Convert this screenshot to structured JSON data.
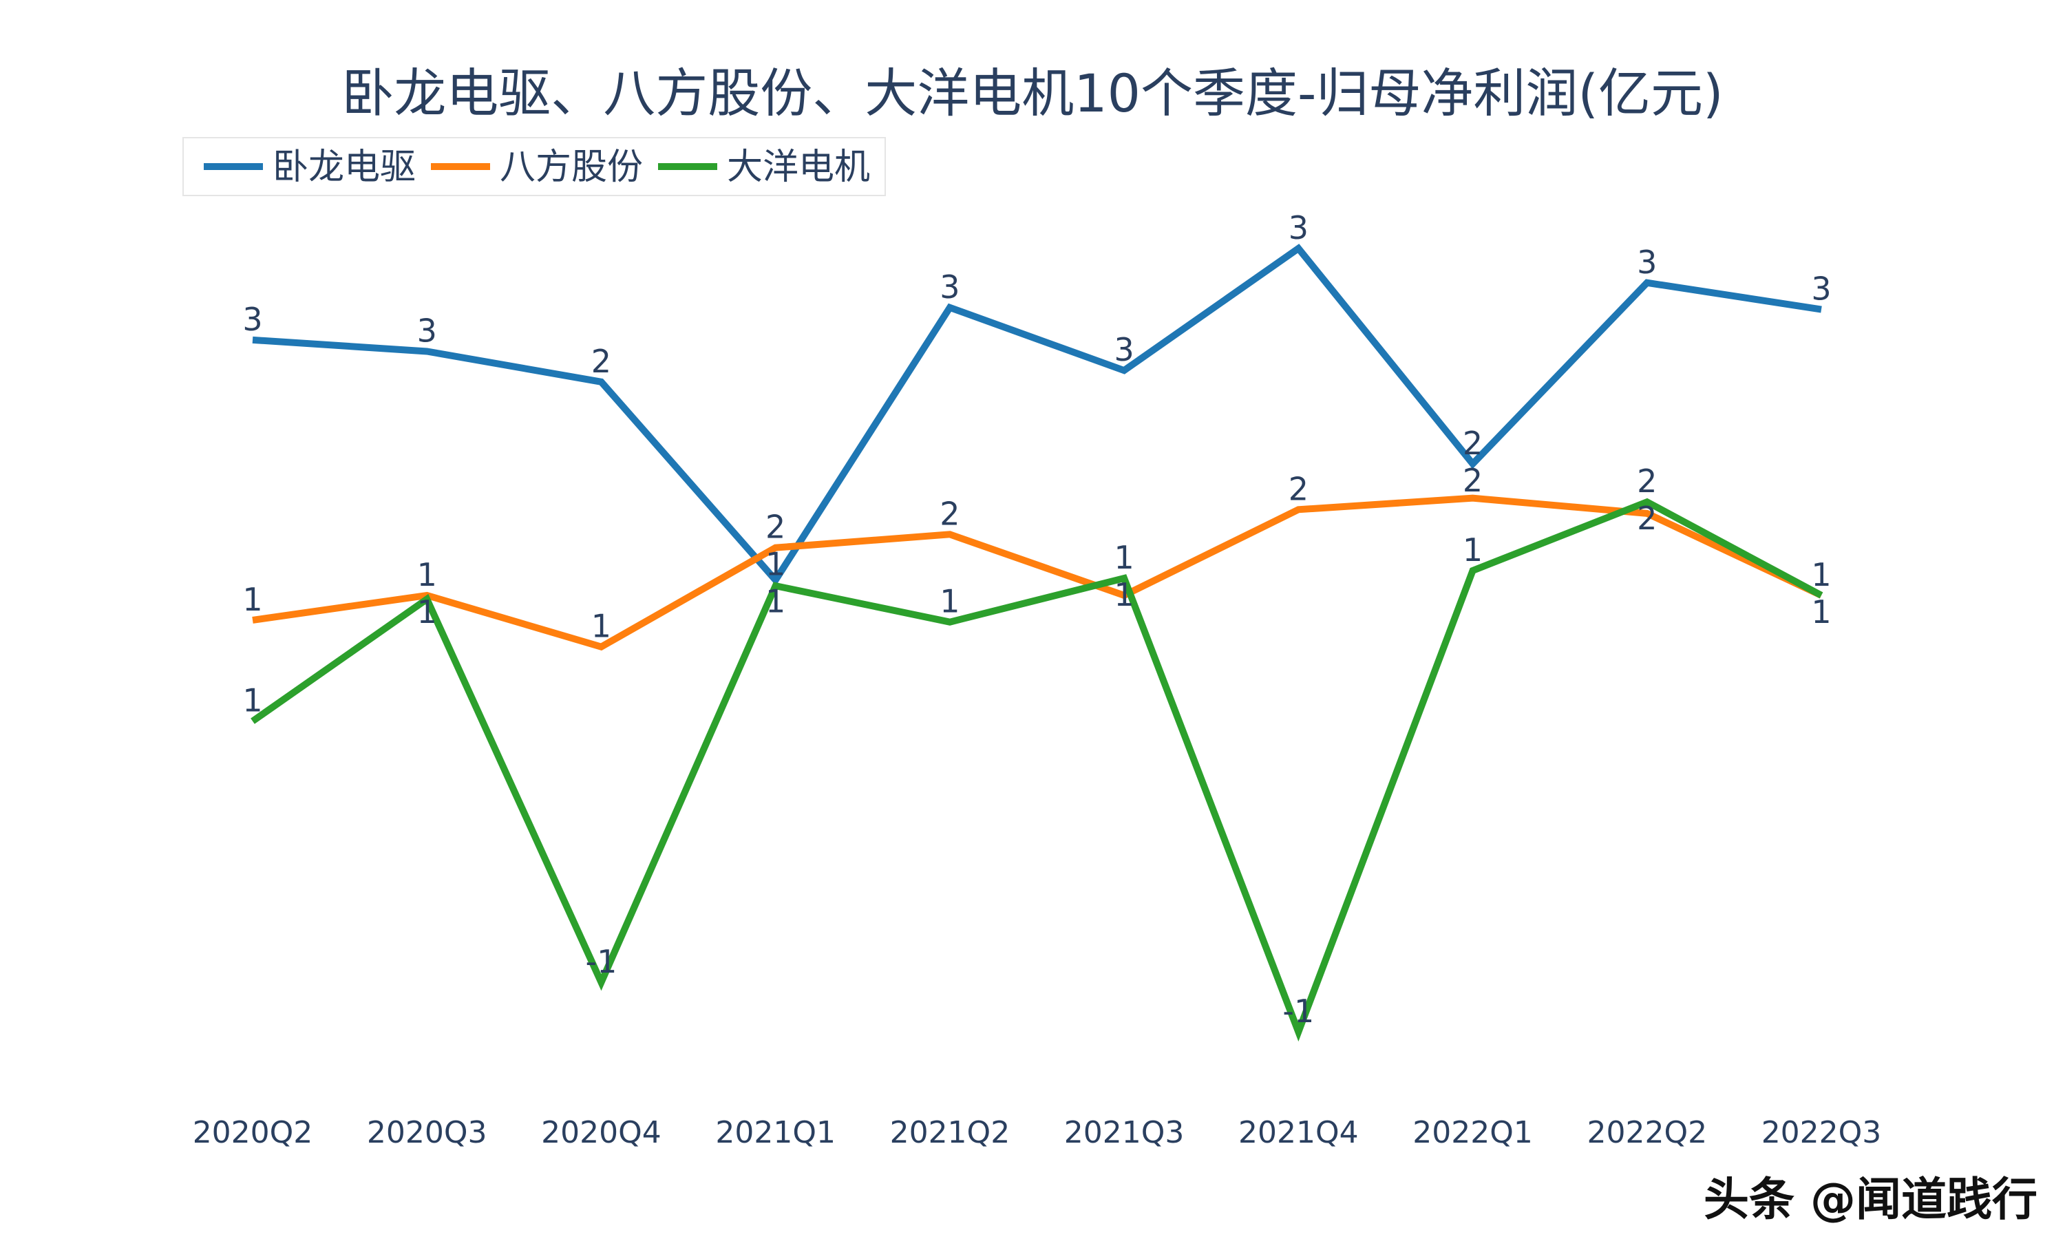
{
  "chart_data": {
    "type": "line",
    "title": "卧龙电驱、八方股份、大洋电机10个季度-归母净利润(亿元)",
    "xlabel": "",
    "ylabel": "",
    "categories": [
      "2020Q2",
      "2020Q3",
      "2020Q4",
      "2021Q1",
      "2021Q2",
      "2021Q3",
      "2021Q4",
      "2022Q1",
      "2022Q2",
      "2022Q3"
    ],
    "ylim": [
      -1.16,
      3.39
    ],
    "grid": false,
    "yaxis_visible": false,
    "legend_position": "top-left",
    "series": [
      {
        "name": "卧龙电驱",
        "color": "#1f77b4",
        "values": [
          2.69,
          2.63,
          2.47,
          1.43,
          2.86,
          2.53,
          3.17,
          2.04,
          2.99,
          2.85
        ],
        "text": [
          "3",
          "3",
          "2",
          "1",
          "3",
          "3",
          "3",
          "2",
          "3",
          "3"
        ]
      },
      {
        "name": "八方股份",
        "color": "#ff7f0e",
        "values": [
          1.22,
          1.35,
          1.08,
          1.6,
          1.67,
          1.35,
          1.8,
          1.86,
          1.78,
          1.35
        ],
        "text": [
          "1",
          "1",
          "1",
          "2",
          "2",
          "1",
          "2",
          "2",
          "2",
          "1"
        ]
      },
      {
        "name": "大洋电机",
        "color": "#2ca02c",
        "values": [
          0.69,
          1.33,
          -0.68,
          1.4,
          1.21,
          1.44,
          -0.94,
          1.48,
          1.84,
          1.35
        ],
        "text": [
          "1",
          "1",
          "-1",
          "1",
          "1",
          "1",
          "-1",
          "1",
          "2",
          "1"
        ]
      }
    ]
  },
  "watermark": "头条 @闻道践行"
}
